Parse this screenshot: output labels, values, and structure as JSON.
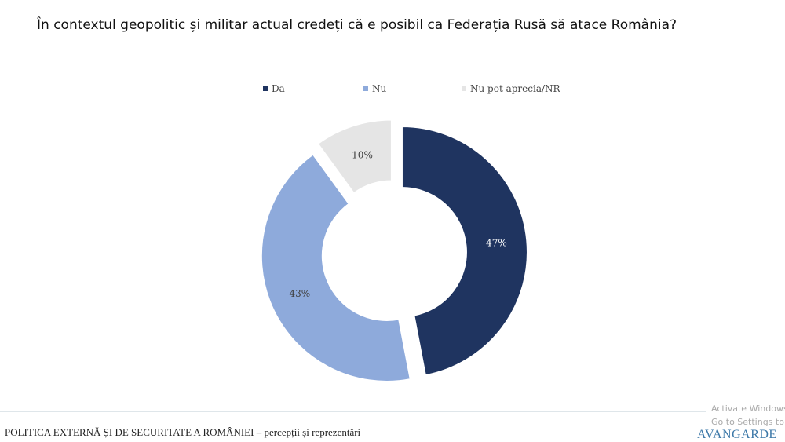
{
  "chart_data": {
    "type": "pie",
    "title": "În contextul geopolitic și militar actual credeți că e posibil ca Federația Rusă să atace România?",
    "donut": true,
    "legend_position": "top",
    "categories": [
      "Da",
      "Nu",
      "Nu pot aprecia/NR"
    ],
    "values": [
      47,
      43,
      10
    ],
    "labels": [
      "47%",
      "43%",
      "10%"
    ],
    "colors": [
      "#1f3460",
      "#8eaadb",
      "#e5e5e5"
    ],
    "label_colors": [
      "#ffffff",
      "#404040",
      "#404040"
    ]
  },
  "footer": {
    "title": "POLITICA EXTERNĂ ȘI DE SECURITATE A ROMÂNIEI",
    "subtitle": " – percepții și reprezentări"
  },
  "watermark": {
    "line1": "Activate Windows",
    "line2": "Go to Settings to activate"
  },
  "logo": "AVANGARDE"
}
